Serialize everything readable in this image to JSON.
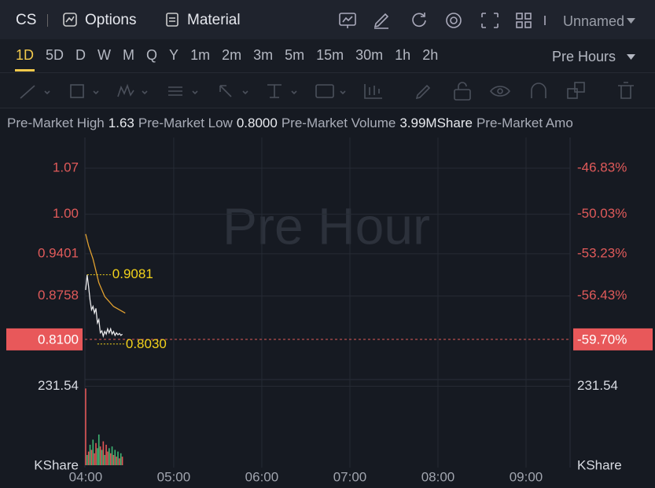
{
  "header": {
    "symbol": "CS",
    "options": "Options",
    "material": "Material",
    "layout": "Unnamed"
  },
  "timeframes": {
    "items": [
      "1D",
      "5D",
      "D",
      "W",
      "M",
      "Q",
      "Y",
      "1m",
      "2m",
      "3m",
      "5m",
      "15m",
      "30m",
      "1h",
      "2h"
    ],
    "selected": 0,
    "session": "Pre Hours"
  },
  "info": {
    "items": [
      {
        "label": "Pre-Market High",
        "value": "1.63"
      },
      {
        "label": "Pre-Market Low",
        "value": "0.8000"
      },
      {
        "label": "Pre-Market Volume",
        "value": "3.99MShare"
      },
      {
        "label": "Pre-Market Amo"
      }
    ]
  },
  "chart_data": {
    "type": "line",
    "watermark": "Pre Hour",
    "series": [
      {
        "color": "#e8e8ea",
        "x": [
          240,
          241,
          242,
          243,
          244,
          245,
          246,
          247,
          248,
          249,
          250,
          251,
          252,
          253,
          254,
          255,
          256,
          257,
          258,
          259,
          260,
          261,
          262,
          263,
          264,
          265
        ],
        "values": [
          0.885,
          0.908,
          0.89,
          0.87,
          0.855,
          0.86,
          0.85,
          0.857,
          0.835,
          0.84,
          0.82,
          0.823,
          0.815,
          0.822,
          0.818,
          0.826,
          0.82,
          0.826,
          0.818,
          0.822,
          0.816,
          0.82,
          0.817,
          0.819,
          0.816,
          0.818
        ]
      },
      {
        "color": "#e0a030",
        "x": [
          240,
          242,
          245,
          249,
          253,
          259,
          267
        ],
        "values": [
          0.97,
          0.952,
          0.932,
          0.896,
          0.875,
          0.86,
          0.85
        ]
      }
    ],
    "xlim": [
      239.5,
      570
    ],
    "xticks": [
      {
        "value": 240,
        "label": "04:00"
      },
      {
        "value": 300,
        "label": "05:00"
      },
      {
        "value": 360,
        "label": "06:00"
      },
      {
        "value": 420,
        "label": "07:00"
      },
      {
        "value": 480,
        "label": "08:00"
      },
      {
        "value": 540,
        "label": "09:00"
      }
    ],
    "ylim": [
      0.749,
      1.1165
    ],
    "yticks": [
      1.07,
      {
        "value": 1,
        "label": "1.00"
      },
      0.9401,
      0.8758
    ],
    "pct_ticks": [
      "-46.83%",
      "-50.03%",
      "-53.23%",
      "-56.43%"
    ],
    "last_price": {
      "value": 0.81,
      "label": "0.8100",
      "pct": "-59.70%"
    },
    "high": 0.9081,
    "low": {
      "value": 0.803,
      "label": "0.8030"
    },
    "volume": {
      "ylim": [
        0,
        235
      ],
      "yticks": [
        231.54
      ],
      "unit": "KShare",
      "x": [
        240,
        241,
        242,
        243,
        244,
        245,
        246,
        247,
        248,
        249,
        250,
        251,
        252,
        253,
        254,
        255,
        256,
        257,
        258,
        259,
        260,
        261,
        262,
        263,
        264,
        265
      ],
      "values": [
        225,
        30,
        40,
        60,
        45,
        75,
        35,
        65,
        50,
        90,
        55,
        45,
        70,
        30,
        60,
        40,
        50,
        35,
        55,
        30,
        45,
        25,
        40,
        20,
        35,
        25
      ],
      "colors": [
        "#e05555",
        "#3fb573",
        "#e05555",
        "#3fb573",
        "#e05555",
        "#3fb573",
        "#e05555",
        "#e05555",
        "#3fb573",
        "#3fb573",
        "#e05555",
        "#3fb573",
        "#e05555",
        "#3fb573",
        "#e05555",
        "#e05555",
        "#3fb573",
        "#e05555",
        "#3fb573",
        "#e05555",
        "#3fb573",
        "#e05555",
        "#3fb573",
        "#e05555",
        "#3fb573",
        "#e05555"
      ]
    }
  }
}
